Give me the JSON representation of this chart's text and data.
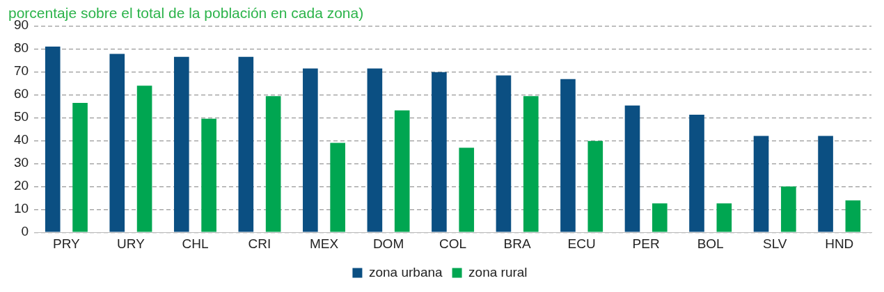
{
  "chart_data": {
    "type": "bar",
    "subtitle": "porcentaje sobre el total de la población en cada zona)",
    "categories": [
      "PRY",
      "URY",
      "CHL",
      "CRI",
      "MEX",
      "DOM",
      "COL",
      "BRA",
      "ECU",
      "PER",
      "BOL",
      "SLV",
      "HND"
    ],
    "series": [
      {
        "name": "zona urbana",
        "color": "#0b4f82",
        "values": [
          81,
          77.8,
          76.5,
          76.5,
          71.4,
          71.4,
          69.8,
          68.4,
          66.8,
          55.3,
          51.3,
          42,
          42
        ]
      },
      {
        "name": "zona rural",
        "color": "#00a651",
        "values": [
          56.4,
          63.9,
          49.5,
          59.4,
          39,
          53.2,
          36.9,
          59.4,
          39.8,
          12.6,
          12.6,
          20,
          13.9
        ]
      }
    ],
    "ylim": [
      0,
      90
    ],
    "yticks": [
      0,
      10,
      20,
      30,
      40,
      50,
      60,
      70,
      80,
      90
    ],
    "grid": "y",
    "legend": "bottom"
  }
}
